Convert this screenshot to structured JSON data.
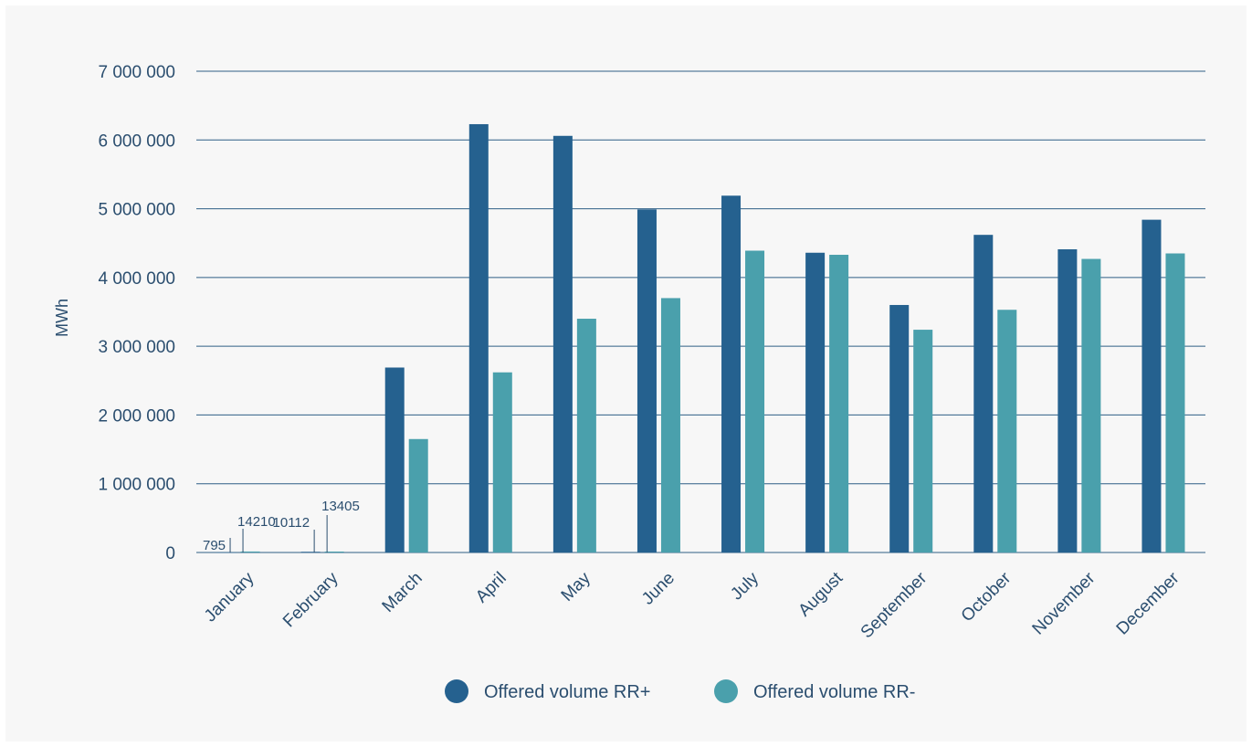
{
  "chart_data": {
    "type": "bar",
    "ylabel": "MWh",
    "ylim": [
      0,
      7000000
    ],
    "yticks": [
      0,
      1000000,
      2000000,
      3000000,
      4000000,
      5000000,
      6000000,
      7000000
    ],
    "ytick_labels": [
      "0",
      "1 000 000",
      "2 000 000",
      "3 000 000",
      "4 000 000",
      "5 000 000",
      "6 000 000",
      "7 000 000"
    ],
    "grid": true,
    "legend": "bottom-center",
    "categories": [
      "January",
      "February",
      "March",
      "April",
      "May",
      "June",
      "July",
      "August",
      "September",
      "October",
      "November",
      "December"
    ],
    "series": [
      {
        "name": "Offered volume RR+",
        "color": "#25618f",
        "values": [
          795,
          10112,
          2690000,
          6230000,
          6060000,
          4990000,
          5190000,
          4360000,
          3600000,
          4620000,
          4410000,
          4840000
        ]
      },
      {
        "name": "Offered volume RR-",
        "color": "#4aa0ac",
        "values": [
          14210,
          13405,
          1650000,
          2620000,
          3400000,
          3700000,
          4390000,
          4330000,
          3240000,
          3530000,
          4270000,
          4350000
        ]
      }
    ],
    "annotations": [
      {
        "category": "January",
        "series": 0,
        "label": "795"
      },
      {
        "category": "January",
        "series": 1,
        "label": "14210"
      },
      {
        "category": "February",
        "series": 0,
        "label": "10112"
      },
      {
        "category": "February",
        "series": 1,
        "label": "13405"
      }
    ]
  }
}
